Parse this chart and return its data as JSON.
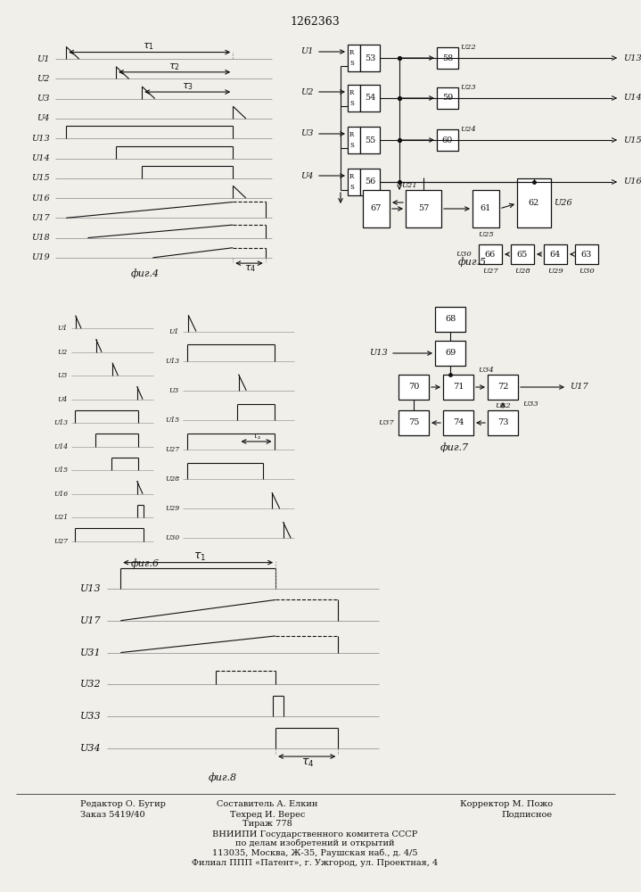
{
  "title": "1262363",
  "bg_color": "#f0efea",
  "fig4_signals": [
    "U1",
    "U2",
    "U3",
    "U4",
    "U13",
    "U14",
    "U15",
    "U16",
    "U17",
    "U18",
    "U19"
  ],
  "fig6a_signals": [
    "U1",
    "U2",
    "U3",
    "U4",
    "U13",
    "U14",
    "U15",
    "U16",
    "U21",
    "U27"
  ],
  "fig6b_signals": [
    "U1",
    "U13",
    "U3",
    "U15",
    "U27",
    "U28",
    "U29",
    "U30"
  ],
  "fig8_signals": [
    "U13",
    "U17",
    "U31",
    "U32",
    "U33",
    "U34"
  ],
  "footer": [
    [
      "Редактор О. Бугир",
      75,
      7,
      "left"
    ],
    [
      "Составитель А. Елкин",
      310,
      7,
      "center"
    ],
    [
      "Корректор М. Пожо",
      560,
      7,
      "right"
    ],
    [
      "Заказ 5419/40",
      75,
      7,
      "left"
    ],
    [
      "Техред И. Верес",
      310,
      7,
      "center"
    ],
    [
      "Подписное",
      560,
      7,
      "right"
    ],
    [
      "Тираж 778",
      310,
      7,
      "center"
    ],
    [
      "ВНИИПИ Государственного комитета СССР",
      353,
      7,
      "center"
    ],
    [
      "по делам изобретений и открытий",
      353,
      7,
      "center"
    ],
    [
      "113035, Москва, Ж-35, Раушская наб., д. 4/5",
      353,
      7,
      "center"
    ],
    [
      "Филиал ППП «Патент», г. Ужгород, ул. Проектная, 4",
      353,
      7,
      "center"
    ]
  ]
}
